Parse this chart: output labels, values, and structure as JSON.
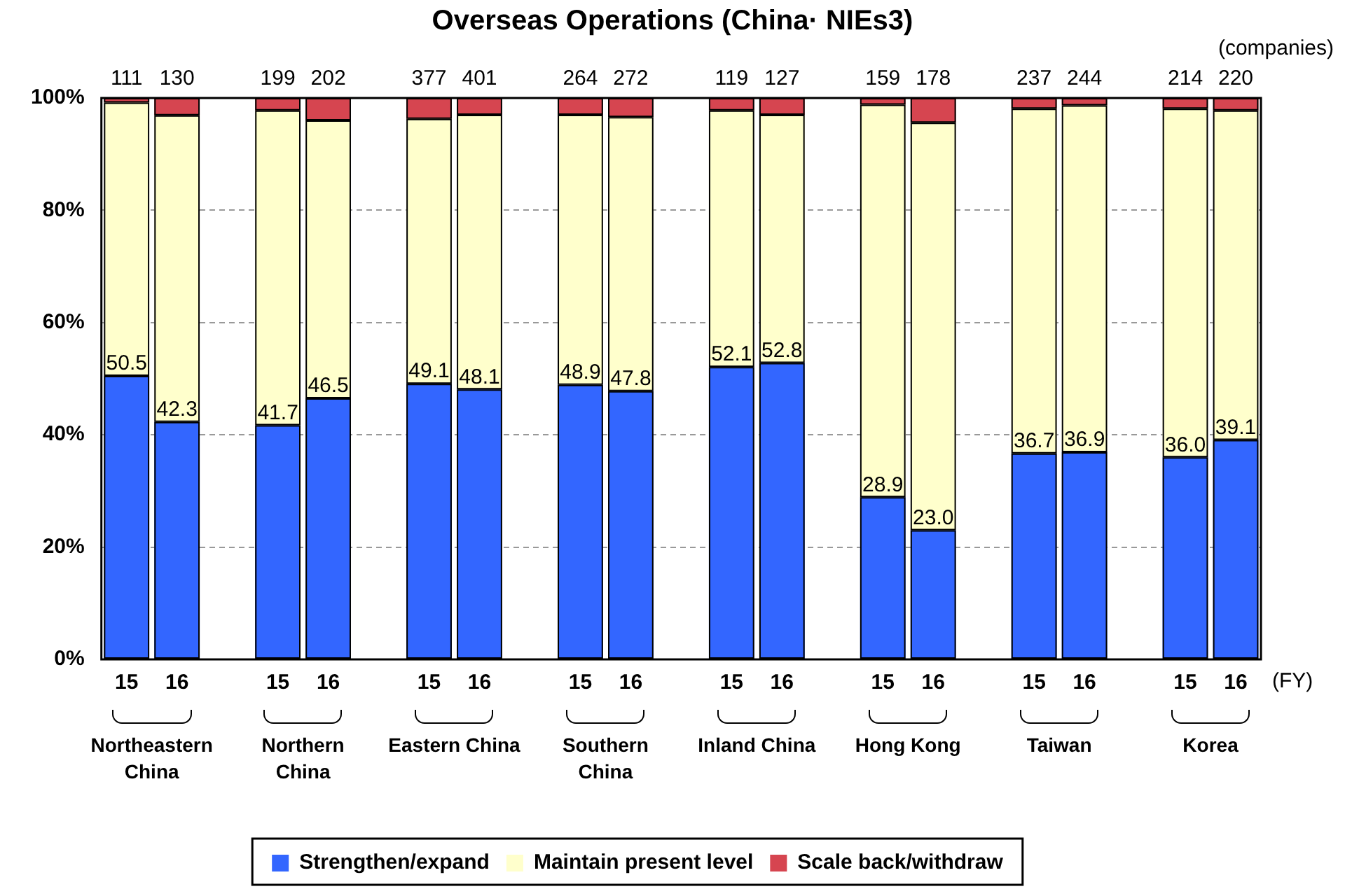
{
  "chart_data": {
    "type": "bar",
    "title": "Overseas Operations (China· NIEs3)",
    "categories": [
      "15",
      "16",
      null,
      "15",
      "16",
      null,
      "15",
      "16",
      null,
      "15",
      "16",
      null,
      "15",
      "16",
      null,
      "15",
      "16",
      null,
      "15",
      "16",
      null,
      "15",
      "16"
    ],
    "stacked": true,
    "series": [
      {
        "name": "Strengthen/expand",
        "color": "#3366ff",
        "values": [
          50.5,
          42.3,
          null,
          41.7,
          46.5,
          null,
          49.1,
          48.1,
          null,
          48.9,
          47.8,
          null,
          52.1,
          52.8,
          null,
          28.9,
          23.0,
          null,
          36.7,
          36.9,
          null,
          36.0,
          39.1
        ],
        "value_labels": [
          "50.5",
          "42.3",
          null,
          "41.7",
          "46.5",
          null,
          "49.1",
          "48.1",
          null,
          "48.9",
          "47.8",
          null,
          "52.1",
          "52.8",
          null,
          "28.9",
          "23.0",
          null,
          "36.7",
          "36.9",
          null,
          "36.0",
          "39.1"
        ]
      },
      {
        "name": "Maintain present level",
        "color": "#ffffcc",
        "values": [
          48.7,
          54.6,
          null,
          56.1,
          49.5,
          null,
          47.2,
          48.9,
          null,
          48.1,
          48.8,
          null,
          45.7,
          44.2,
          null,
          69.9,
          72.6,
          null,
          61.4,
          61.8,
          null,
          62.1,
          58.7
        ]
      },
      {
        "name": "Scale back/withdraw",
        "color": "#d64550",
        "values": [
          0.8,
          3.1,
          null,
          2.2,
          4.0,
          null,
          3.7,
          3.0,
          null,
          3.0,
          3.4,
          null,
          2.2,
          3.0,
          null,
          1.2,
          4.4,
          null,
          1.9,
          1.3,
          null,
          1.9,
          2.2
        ]
      }
    ],
    "ylim": [
      0,
      100
    ],
    "yticks": [
      {
        "value": 0,
        "label": "0%"
      },
      {
        "value": 20,
        "label": "20%"
      },
      {
        "value": 40,
        "label": "40%"
      },
      {
        "value": 60,
        "label": "60%"
      },
      {
        "value": 80,
        "label": "80%"
      },
      {
        "value": 100,
        "label": "100%"
      }
    ],
    "grid": "y",
    "legend": "bottom",
    "annotations": [
      "Northeastern China",
      "Northern China",
      "Eastern China",
      "Southern China",
      "Inland China",
      "Hong Kong",
      "Taiwan",
      "Korea",
      "(FY)",
      "(companies)",
      "111",
      "130",
      "199",
      "202",
      "377",
      "401",
      "264",
      "272",
      "119",
      "127",
      "159",
      "178",
      "237",
      "244",
      "214",
      "220"
    ]
  }
}
